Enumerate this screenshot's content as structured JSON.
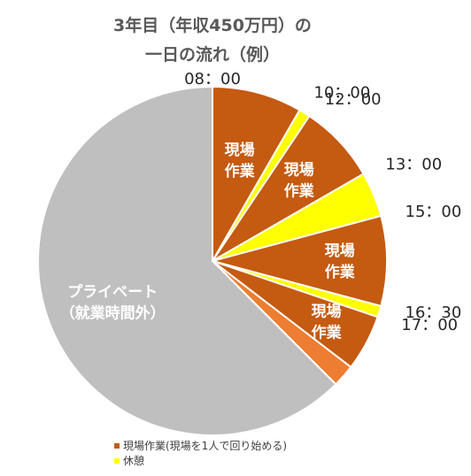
{
  "chart_data": {
    "type": "pie",
    "title_line1": "3年目（年収450万円）の",
    "title_line2": "一日の流れ（例）",
    "start_time": "08:00",
    "slices": [
      {
        "label_lines": [
          "現場",
          "作業"
        ],
        "value": 2.0,
        "category": "work"
      },
      {
        "label_lines": [],
        "value": 0.25,
        "category": "rest"
      },
      {
        "label_lines": [
          "現場",
          "作業"
        ],
        "value": 1.75,
        "category": "work"
      },
      {
        "label_lines": [],
        "value": 1.0,
        "category": "rest"
      },
      {
        "label_lines": [
          "現場",
          "作業"
        ],
        "value": 2.0,
        "category": "work"
      },
      {
        "label_lines": [],
        "value": 0.25,
        "category": "rest"
      },
      {
        "label_lines": [
          "現場",
          "作業"
        ],
        "value": 1.25,
        "category": "work"
      },
      {
        "label_lines": [],
        "value": 0.5,
        "category": "wrapup"
      },
      {
        "label_lines": [
          "プライベート",
          "（就業時間外）"
        ],
        "value": 15.0,
        "category": "private"
      }
    ],
    "time_labels": [
      "08：00",
      "10：00",
      "12：00",
      "13：00",
      "15：00",
      "16：30",
      "17：00"
    ],
    "colors": {
      "work": "#C55A11",
      "rest": "#FFFF00",
      "wrapup": "#ED7D31",
      "private": "#BFBFBF"
    },
    "legend": [
      {
        "label": "現場作業(現場を1人で回り始める)",
        "color": "#C55A11"
      },
      {
        "label": "休憩",
        "color": "#FFFF00"
      }
    ]
  }
}
